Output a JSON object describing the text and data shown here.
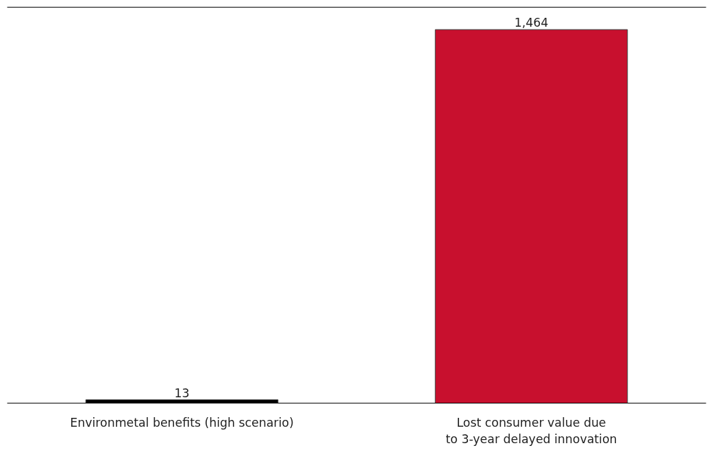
{
  "chart_data": {
    "type": "bar",
    "categories": [
      "Environmetal benefits (high scenario)",
      "Lost consumer value due\nto 3-year delayed innovation"
    ],
    "values": [
      13,
      1464
    ],
    "colors": [
      "#000000",
      "#c8102e"
    ],
    "value_labels": [
      "13",
      "1,464"
    ],
    "grid": false
  }
}
